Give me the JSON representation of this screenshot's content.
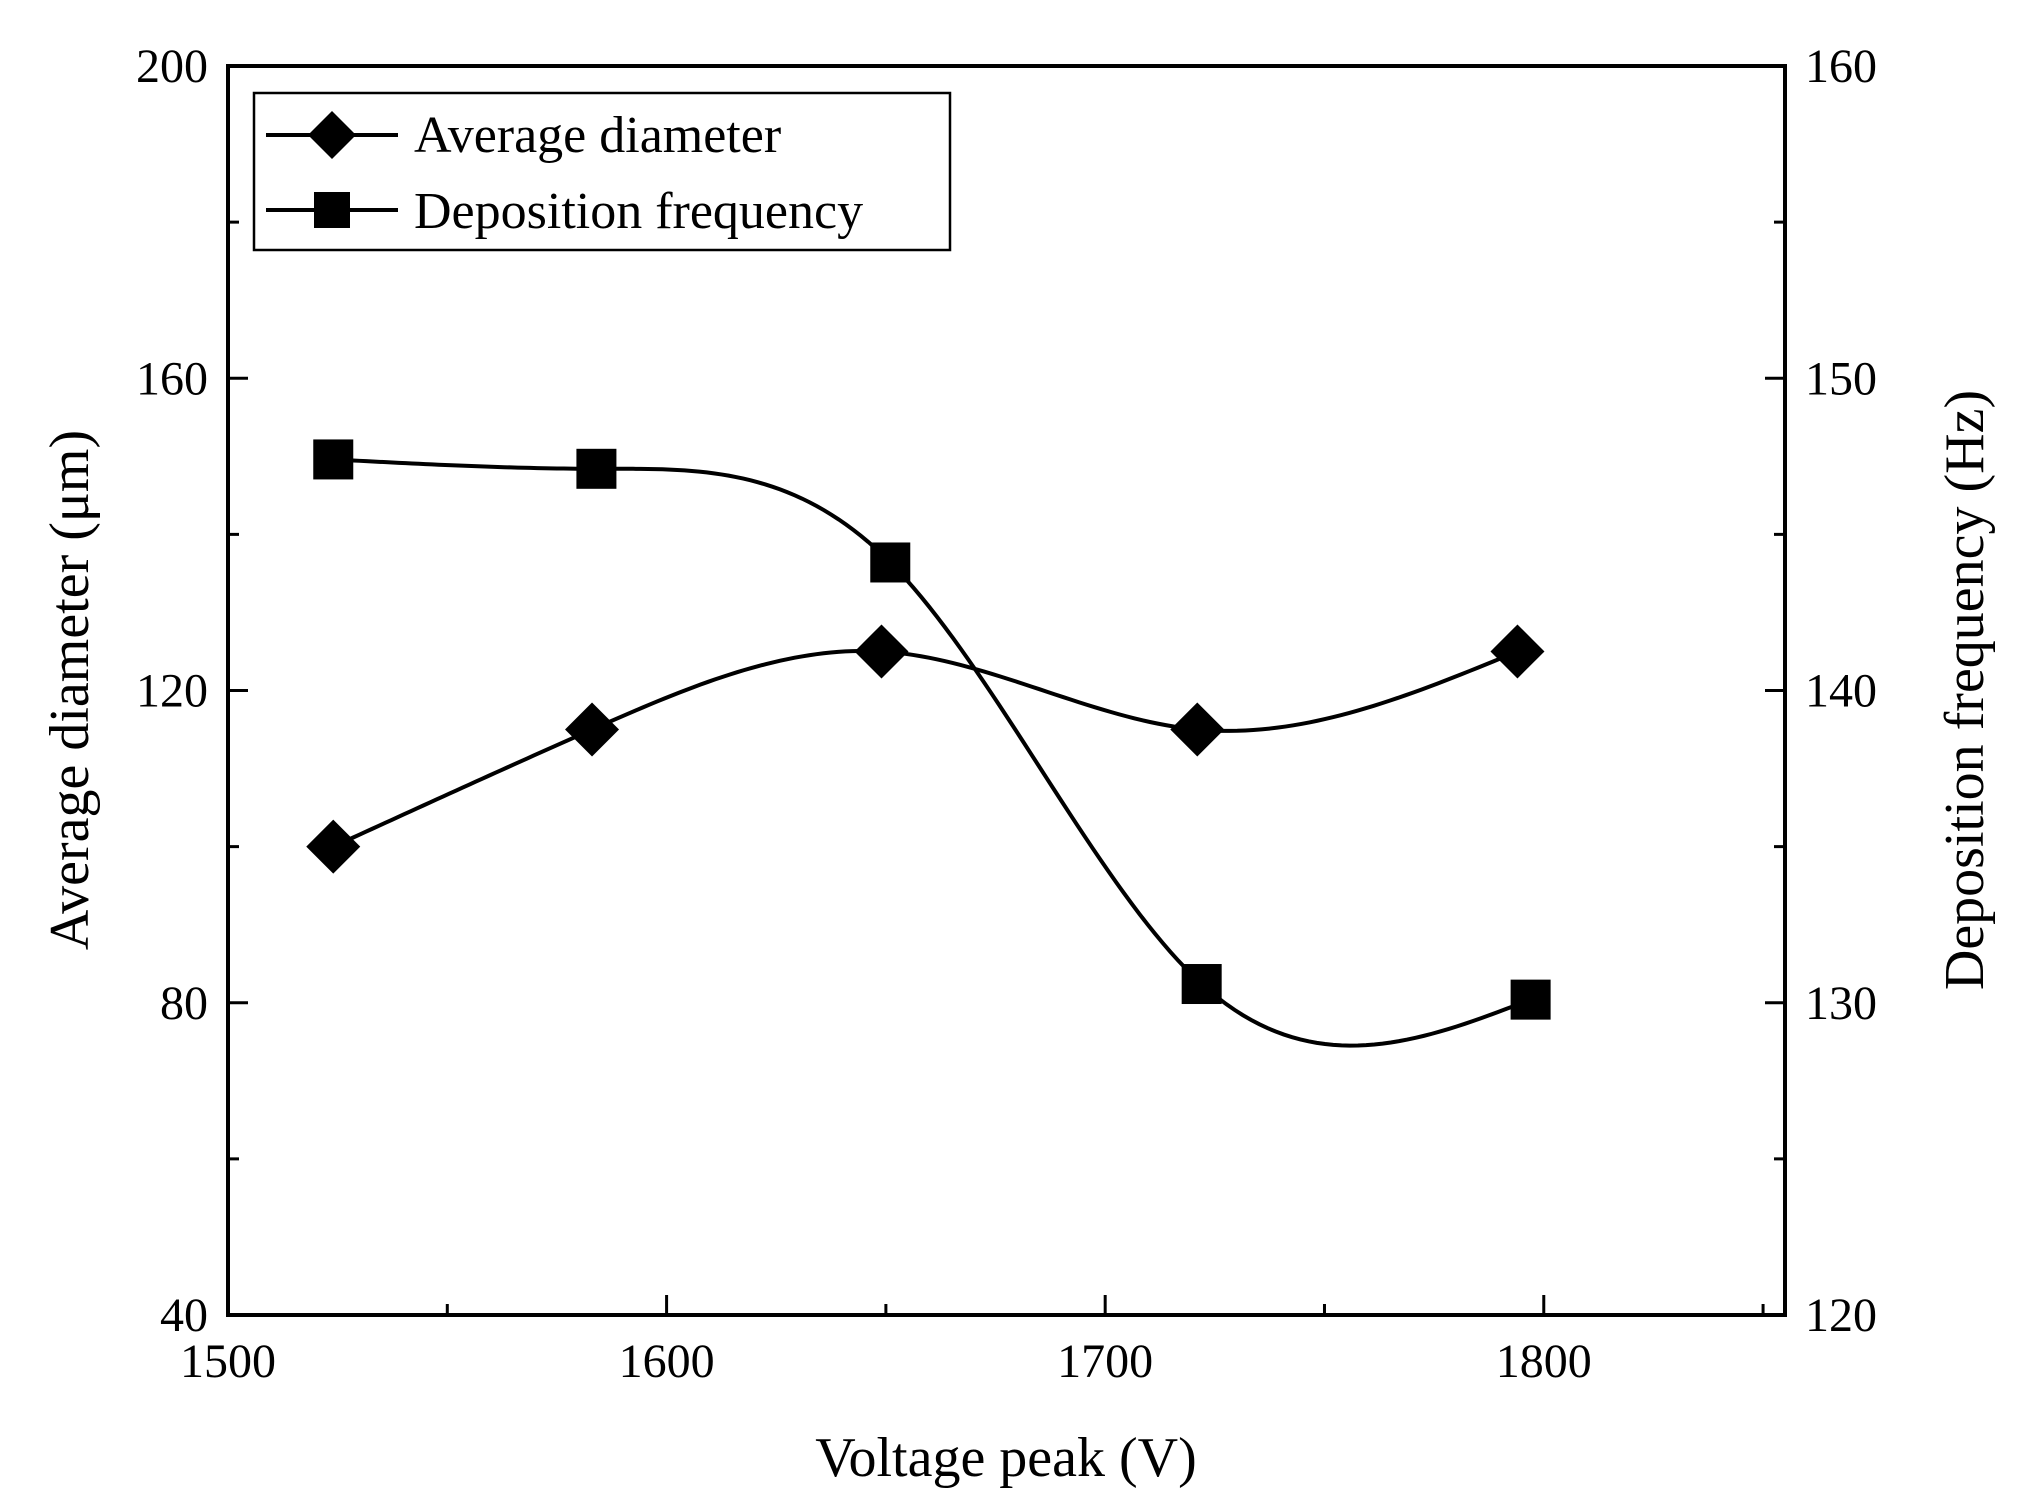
{
  "chart_data": {
    "type": "line",
    "title": "",
    "xlabel": "Voltage peak (V)",
    "ylabel": "Average diameter (μm)",
    "y2label": "Deposition frequency (Hz)",
    "xlim": [
      1500,
      1855
    ],
    "ylim": [
      40,
      200
    ],
    "y2lim": [
      120,
      160
    ],
    "x_ticks": [
      1500,
      1600,
      1700,
      1800
    ],
    "x_minor_ticks": [
      1550,
      1650,
      1750,
      1850
    ],
    "y_ticks": [
      40,
      80,
      120,
      160,
      200
    ],
    "y_minor_ticks": [
      60,
      100,
      140,
      180
    ],
    "y2_ticks": [
      120,
      130,
      140,
      150,
      160
    ],
    "y2_minor_ticks": [
      125,
      135,
      145,
      155
    ],
    "legend_position": "top-left",
    "series": [
      {
        "name": "Average diameter",
        "axis": "left",
        "marker": "diamond",
        "x": [
          1524,
          1583,
          1649,
          1721,
          1794
        ],
        "values": [
          100,
          115,
          125,
          115,
          125
        ]
      },
      {
        "name": "Deposition frequency",
        "axis": "right",
        "marker": "square",
        "x": [
          1524,
          1584,
          1651,
          1722,
          1797
        ],
        "values": [
          147.4,
          147.1,
          144.1,
          130.6,
          130.1
        ]
      }
    ]
  }
}
